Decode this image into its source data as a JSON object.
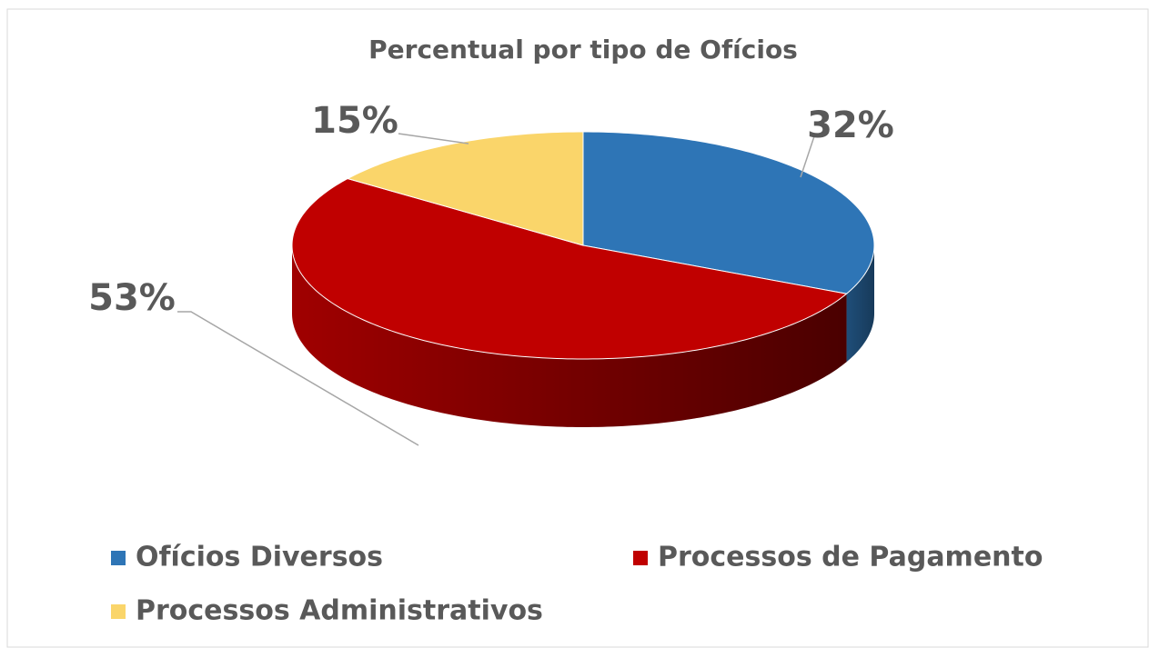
{
  "chart_data": {
    "type": "pie",
    "title": "Percentual por tipo de Ofícios",
    "categories": [
      "Ofícios Diversos",
      "Processos de Pagamento",
      "Processos Administrativos"
    ],
    "values": [
      32,
      53,
      15
    ],
    "value_labels": [
      "32%",
      "53%",
      "15%"
    ],
    "colors": [
      "#2e75b6",
      "#c00000",
      "#fad56a"
    ],
    "legend": "bottom"
  }
}
